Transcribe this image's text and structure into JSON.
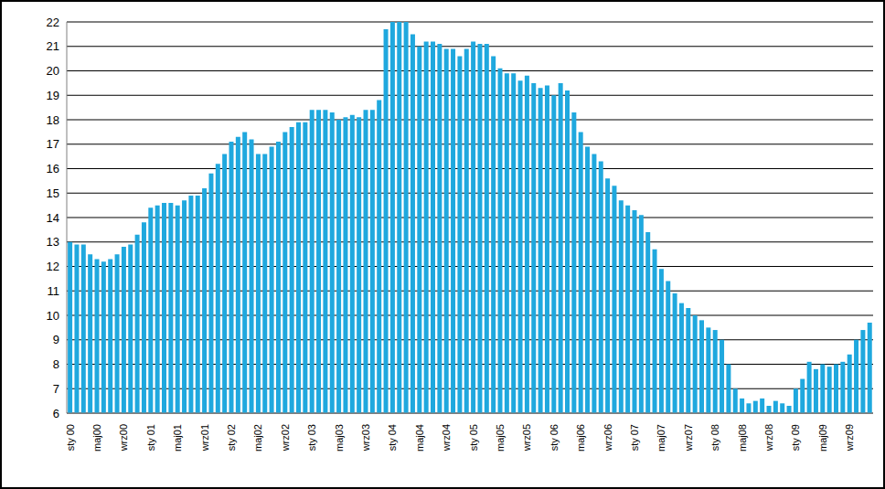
{
  "chart_data": {
    "type": "bar",
    "categories": [
      "sty 00",
      null,
      null,
      null,
      "maj00",
      null,
      null,
      null,
      "wrz00",
      null,
      null,
      null,
      "sty 01",
      null,
      null,
      null,
      "maj01",
      null,
      null,
      null,
      "wrz01",
      null,
      null,
      null,
      "sty 02",
      null,
      null,
      null,
      "maj02",
      null,
      null,
      null,
      "wrz02",
      null,
      null,
      null,
      "sty 03",
      null,
      null,
      null,
      "maj03",
      null,
      null,
      null,
      "wrz03",
      null,
      null,
      null,
      "sty 04",
      null,
      null,
      null,
      "maj04",
      null,
      null,
      null,
      "wrz04",
      null,
      null,
      null,
      "sty 05",
      null,
      null,
      null,
      "maj05",
      null,
      null,
      null,
      "wrz05",
      null,
      null,
      null,
      "sty 06",
      null,
      null,
      null,
      "maj06",
      null,
      null,
      null,
      "wrz06",
      null,
      null,
      null,
      "sty 07",
      null,
      null,
      null,
      "maj07",
      null,
      null,
      null,
      "wrz07",
      null,
      null,
      null,
      "sty 08",
      null,
      null,
      null,
      "maj08",
      null,
      null,
      null,
      "wrz08",
      null,
      null,
      null,
      "sty 09",
      null,
      null,
      null,
      "maj09",
      null,
      null,
      null,
      "wrz09",
      null,
      null,
      null
    ],
    "values": [
      13.0,
      12.9,
      12.9,
      12.5,
      12.3,
      12.2,
      12.3,
      12.5,
      12.8,
      12.9,
      13.3,
      13.8,
      14.4,
      14.5,
      14.6,
      14.6,
      14.5,
      14.7,
      14.9,
      14.9,
      15.2,
      15.8,
      16.2,
      16.6,
      17.1,
      17.3,
      17.5,
      17.2,
      16.6,
      16.6,
      16.9,
      17.1,
      17.5,
      17.7,
      17.9,
      17.9,
      18.4,
      18.4,
      18.4,
      18.3,
      18.0,
      18.1,
      18.2,
      18.1,
      18.4,
      18.4,
      18.8,
      21.7,
      22.0,
      22.0,
      22.0,
      21.5,
      21.0,
      21.2,
      21.2,
      21.1,
      20.9,
      20.9,
      20.6,
      20.9,
      21.2,
      21.1,
      21.1,
      20.6,
      20.1,
      19.9,
      19.9,
      19.6,
      19.8,
      19.5,
      19.3,
      19.4,
      19.0,
      19.5,
      19.2,
      18.3,
      17.5,
      16.9,
      16.6,
      16.3,
      15.6,
      15.3,
      14.7,
      14.5,
      14.3,
      14.1,
      13.4,
      12.7,
      11.9,
      11.4,
      10.9,
      10.5,
      10.3,
      10.0,
      9.8,
      9.5,
      9.4,
      9.0,
      8.0,
      7.0,
      6.6,
      6.4,
      6.5,
      6.6,
      6.3,
      6.5,
      6.4,
      6.3,
      7.0,
      7.4,
      8.1,
      7.8,
      8.0,
      7.9,
      8.0,
      8.1,
      8.4,
      9.0,
      9.4,
      9.7
    ],
    "color": "#1fa8de",
    "ylim": [
      6,
      22
    ],
    "yticks": [
      6,
      7,
      8,
      9,
      10,
      11,
      12,
      13,
      14,
      15,
      16,
      17,
      18,
      19,
      20,
      21,
      22
    ],
    "grid": true
  }
}
